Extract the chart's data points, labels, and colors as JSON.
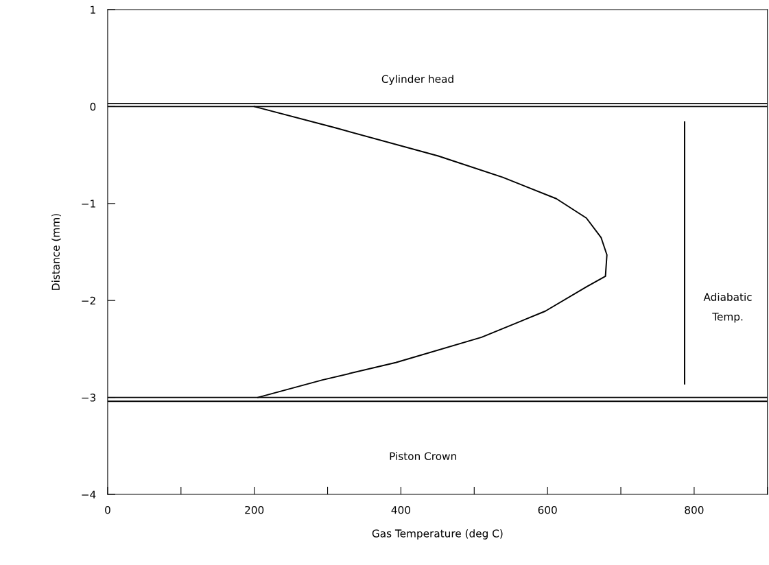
{
  "chart_data": {
    "type": "line",
    "xlabel": "Gas Temperature (deg C)",
    "ylabel": "Distance (mm)",
    "series": [
      {
        "color": "#000000",
        "x": [
          200,
          311,
          451,
          539,
          612,
          653,
          673,
          681,
          679,
          653,
          597,
          510,
          393,
          293,
          205
        ],
        "values": [
          0,
          -0.22,
          -0.51,
          -0.73,
          -0.95,
          -1.15,
          -1.35,
          -1.53,
          -1.75,
          -1.86,
          -2.11,
          -2.38,
          -2.64,
          -2.82,
          -3.0
        ]
      },
      {
        "color": "#000000",
        "x": [
          787,
          787
        ],
        "values": [
          -0.16,
          -2.86
        ]
      }
    ],
    "ref_lines": [
      {
        "axis": "y",
        "value": 0.03,
        "color": "#000000"
      },
      {
        "axis": "y",
        "value": 0,
        "color": "#000000"
      },
      {
        "axis": "y",
        "value": -3.0,
        "color": "#000000"
      },
      {
        "axis": "y",
        "value": -3.04,
        "color": "#000000"
      }
    ],
    "annotations": [
      "Cylinder head",
      "Piston Crown",
      "Adiabatic\nTemp."
    ],
    "xlim": [
      0,
      900
    ],
    "ylim": [
      -4,
      1
    ],
    "xticks": [
      0,
      {
        "value": 100,
        "label": null
      },
      200,
      {
        "value": 300,
        "label": null
      },
      400,
      {
        "value": 500,
        "label": null
      },
      600,
      {
        "value": 700,
        "label": null
      },
      800,
      {
        "value": 900,
        "label": null
      }
    ],
    "yticks": [
      {
        "value": -4,
        "label": "−4"
      },
      {
        "value": -3,
        "label": "−3"
      },
      {
        "value": -2,
        "label": "−2"
      },
      {
        "value": -1,
        "label": "−1"
      },
      0,
      1
    ],
    "grid": false,
    "legend": false,
    "marker": "none",
    "line_style": "solid"
  }
}
